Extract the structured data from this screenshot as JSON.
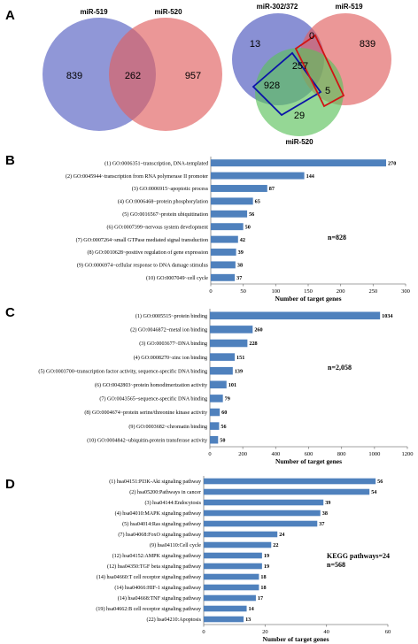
{
  "panels": {
    "a": "A",
    "b": "B",
    "c": "C",
    "d": "D"
  },
  "venn2": {
    "labels": [
      "miR-519",
      "miR-520"
    ],
    "left_only": "839",
    "both": "262",
    "right_only": "957"
  },
  "venn3": {
    "labels": [
      "miR-302/372",
      "miR-519",
      "miR-520"
    ],
    "a_only": "13",
    "ab": "0",
    "b_only": "839",
    "abc": "257",
    "ac": "928",
    "bc": "5",
    "c_only": "29"
  },
  "chart_data": [
    {
      "type": "bar",
      "orientation": "horizontal",
      "categories": [
        "(1) GO:0006351~transcription, DNA-templated",
        "(2) GO:0045944~transcription from RNA polymerase II promoter",
        "(3) GO:0006915~apoptotic process",
        "(4) GO:0006468~protein phosphorylation",
        "(5) GO:0016567~protein ubiquitination",
        "(6) GO:0007399~nervous system development",
        "(7) GO:0007264~small GTPase mediated signal transduction",
        "(8) GO:0010628~positive regulation of gene expression",
        "(9) GO:0006974~cellular response to DNA damage stimulus",
        "(10) GO:0007049~cell cycle"
      ],
      "values": [
        270,
        144,
        87,
        65,
        56,
        50,
        42,
        39,
        38,
        37
      ],
      "xlabel": "Number of target genes",
      "xlim": [
        0,
        300
      ],
      "xticks": [
        0,
        50,
        100,
        150,
        200,
        250,
        300
      ],
      "annotation": "n=828"
    },
    {
      "type": "bar",
      "orientation": "horizontal",
      "categories": [
        "(1) GO:0005515~protein binding",
        "(2) GO:0046872~metal ion binding",
        "(3) GO:0003677~DNA binding",
        "(4) GO:0008270~zinc ion binding",
        "(5) GO:0003700~transcription factor activity, sequence-specific DNA binding",
        "(6) GO:0042803~protein homodimerization activity",
        "(7) GO:0043565~sequence-specific DNA binding",
        "(8) GO:0004674~protein serine/threonine kinase activity",
        "(9) GO:0003682~chromatin binding",
        "(10) GO:0004842~ubiquitin-protein transferase activity"
      ],
      "values": [
        1034,
        260,
        228,
        151,
        139,
        101,
        79,
        60,
        56,
        50
      ],
      "xlabel": "Number of target genes",
      "xlim": [
        0,
        1200
      ],
      "xticks": [
        0,
        200,
        400,
        600,
        800,
        1000,
        1200
      ],
      "annotation": "n=2,058"
    },
    {
      "type": "bar",
      "orientation": "horizontal",
      "categories": [
        "(1) hsa04151:PI3K-Akt signaling pathway",
        "(2) hsa05200:Pathways in cancer",
        "(3) hsa04144:Endocytosis",
        "(4) hsa04010:MAPK signaling pathway",
        "(5) hsa04014:Ras signaling pathway",
        "(7) hsa04068:FoxO signaling pathway",
        "(9) hsa04110:Cell cycle",
        "(12) hsa04152:AMPK signaling pathway",
        "(12) hsa04350:TGF beta signaling pathway",
        "(14) hsa04660:T cell receptor signaling pathway",
        "(14) hsa04066:HIF-1 signaling pathway",
        "(14) hsa04668:TNF signaling pathway",
        "(19) hsa04662:B cell receptor signaling pathway",
        "(22) hsa04210:Apoptosis"
      ],
      "values": [
        56,
        54,
        39,
        38,
        37,
        24,
        22,
        19,
        19,
        18,
        18,
        17,
        14,
        13
      ],
      "xlabel": "Number of target genes",
      "xlim": [
        0,
        60
      ],
      "xticks": [
        0,
        20,
        40,
        60
      ],
      "annotation": "KEGG pathways=24",
      "annotation2": "n=568"
    }
  ]
}
